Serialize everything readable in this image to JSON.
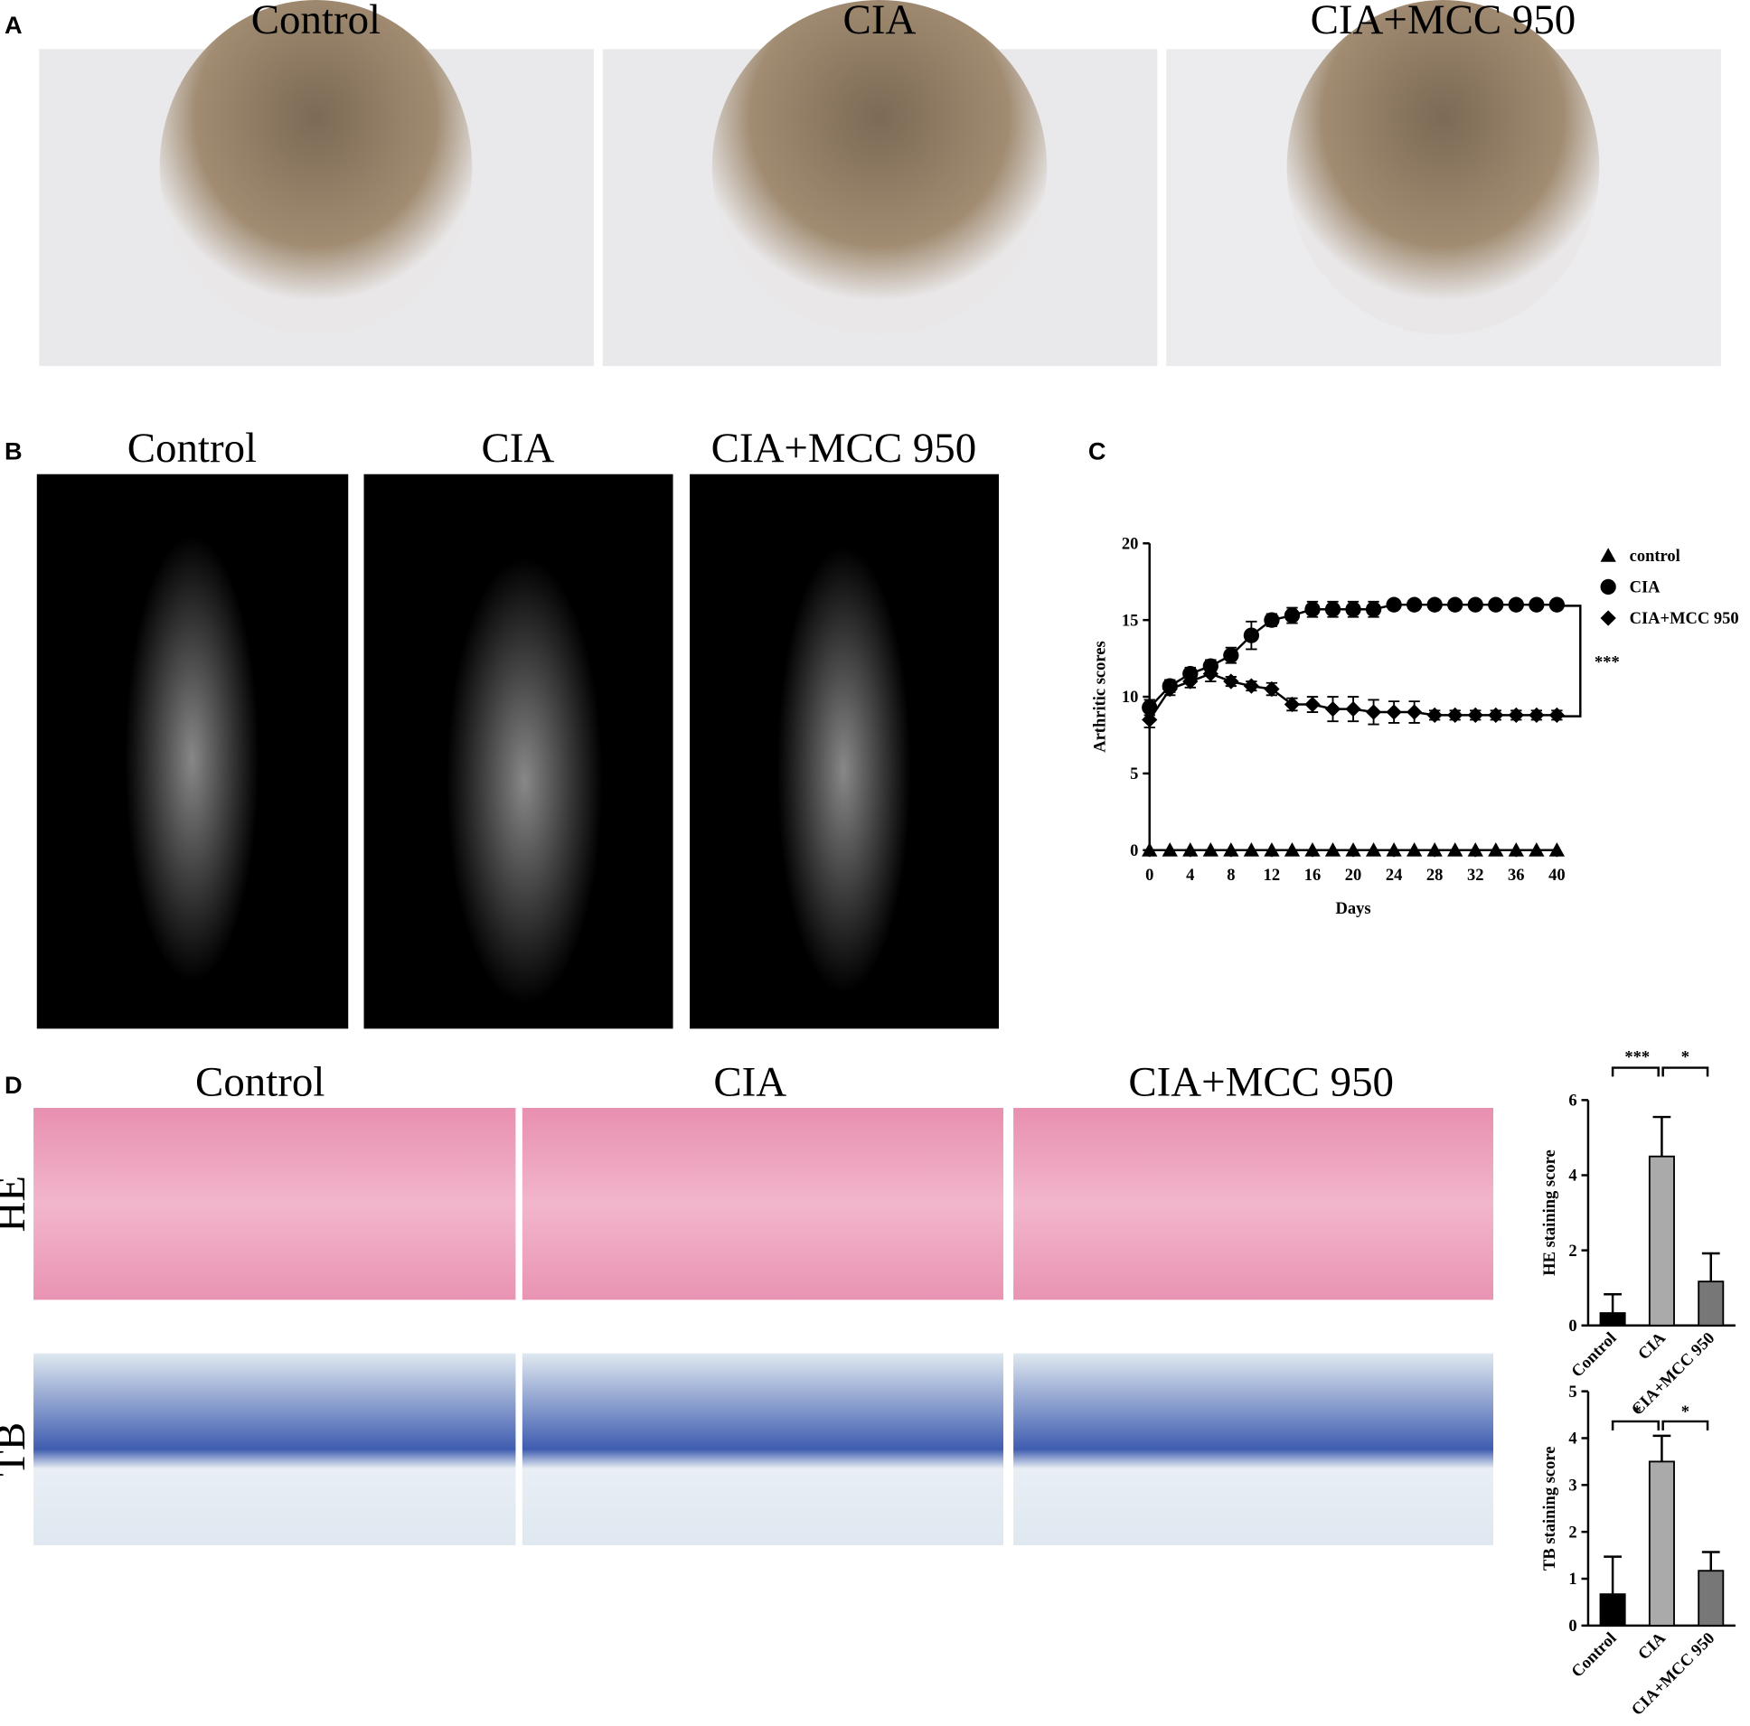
{
  "panels": {
    "A": {
      "label": "A",
      "titles": [
        "Control",
        "CIA",
        "CIA+MCC 950"
      ]
    },
    "B": {
      "label": "B",
      "titles": [
        "Control",
        "CIA",
        "CIA+MCC 950"
      ]
    },
    "C": {
      "label": "C"
    },
    "D": {
      "label": "D",
      "titles": [
        "Control",
        "CIA",
        "CIA+MCC 950"
      ],
      "rows": [
        "HE",
        "TB"
      ]
    }
  },
  "chart_data": [
    {
      "type": "line",
      "y_label": "Arthritic scores",
      "x_label": "Days",
      "x": [
        0,
        2,
        4,
        6,
        8,
        10,
        12,
        14,
        16,
        18,
        20,
        22,
        24,
        26,
        28,
        30,
        32,
        34,
        36,
        38,
        40
      ],
      "xlim": [
        0,
        40
      ],
      "xticks": [
        0,
        4,
        8,
        12,
        16,
        20,
        24,
        28,
        32,
        36,
        40
      ],
      "ylim": [
        0,
        20
      ],
      "yticks": [
        0,
        5,
        10,
        15,
        20
      ],
      "legend": "upper-right",
      "annotation": "***",
      "series": [
        {
          "name": "control",
          "color": "#000000",
          "marker": "triangle",
          "values": [
            0,
            0,
            0,
            0,
            0,
            0,
            0,
            0,
            0,
            0,
            0,
            0,
            0,
            0,
            0,
            0,
            0,
            0,
            0,
            0,
            0
          ],
          "errors": [
            0,
            0,
            0,
            0,
            0,
            0,
            0,
            0,
            0,
            0,
            0,
            0,
            0,
            0,
            0,
            0,
            0,
            0,
            0,
            0,
            0
          ]
        },
        {
          "name": "CIA",
          "color": "#000000",
          "marker": "circle",
          "values": [
            9.3,
            10.7,
            11.5,
            12,
            12.7,
            14,
            15,
            15.3,
            15.7,
            15.7,
            15.7,
            15.7,
            16,
            16,
            16,
            16,
            16,
            16,
            16,
            16,
            16
          ],
          "errors": [
            0.5,
            0.4,
            0.4,
            0.4,
            0.5,
            0.9,
            0.4,
            0.5,
            0.5,
            0.5,
            0.5,
            0.5,
            0,
            0,
            0,
            0,
            0,
            0,
            0,
            0,
            0
          ]
        },
        {
          "name": "CIA+MCC 950",
          "color": "#000000",
          "marker": "diamond",
          "values": [
            8.5,
            10.5,
            11,
            11.5,
            11,
            10.7,
            10.5,
            9.5,
            9.5,
            9.2,
            9.2,
            9,
            9,
            9,
            8.8,
            8.8,
            8.8,
            8.8,
            8.8,
            8.8,
            8.8
          ],
          "errors": [
            0.5,
            0.4,
            0.4,
            0.5,
            0.3,
            0.3,
            0.4,
            0.4,
            0.5,
            0.8,
            0.8,
            0.8,
            0.7,
            0.7,
            0.3,
            0.3,
            0.3,
            0.3,
            0.3,
            0.3,
            0.3
          ]
        }
      ]
    },
    {
      "type": "bar",
      "y_label": "HE staining score",
      "categories": [
        "Control",
        "CIA",
        "CIA+MCC 950"
      ],
      "values": [
        0.33,
        4.5,
        1.17
      ],
      "errors": [
        0.5,
        1.05,
        0.75
      ],
      "colors": [
        "#000000",
        "#aaaaaa",
        "#777777"
      ],
      "ylim": [
        0,
        6
      ],
      "yticks": [
        0,
        2,
        4,
        6
      ],
      "annotations": [
        "***",
        "*"
      ]
    },
    {
      "type": "bar",
      "y_label": "TB staining score",
      "categories": [
        "Control",
        "CIA",
        "CIA+MCC 950"
      ],
      "values": [
        0.67,
        3.5,
        1.17
      ],
      "errors": [
        0.8,
        0.55,
        0.4
      ],
      "colors": [
        "#000000",
        "#aaaaaa",
        "#777777"
      ],
      "ylim": [
        0,
        5
      ],
      "yticks": [
        0,
        1,
        2,
        3,
        4,
        5
      ],
      "annotations": [
        "*",
        "*"
      ]
    }
  ]
}
